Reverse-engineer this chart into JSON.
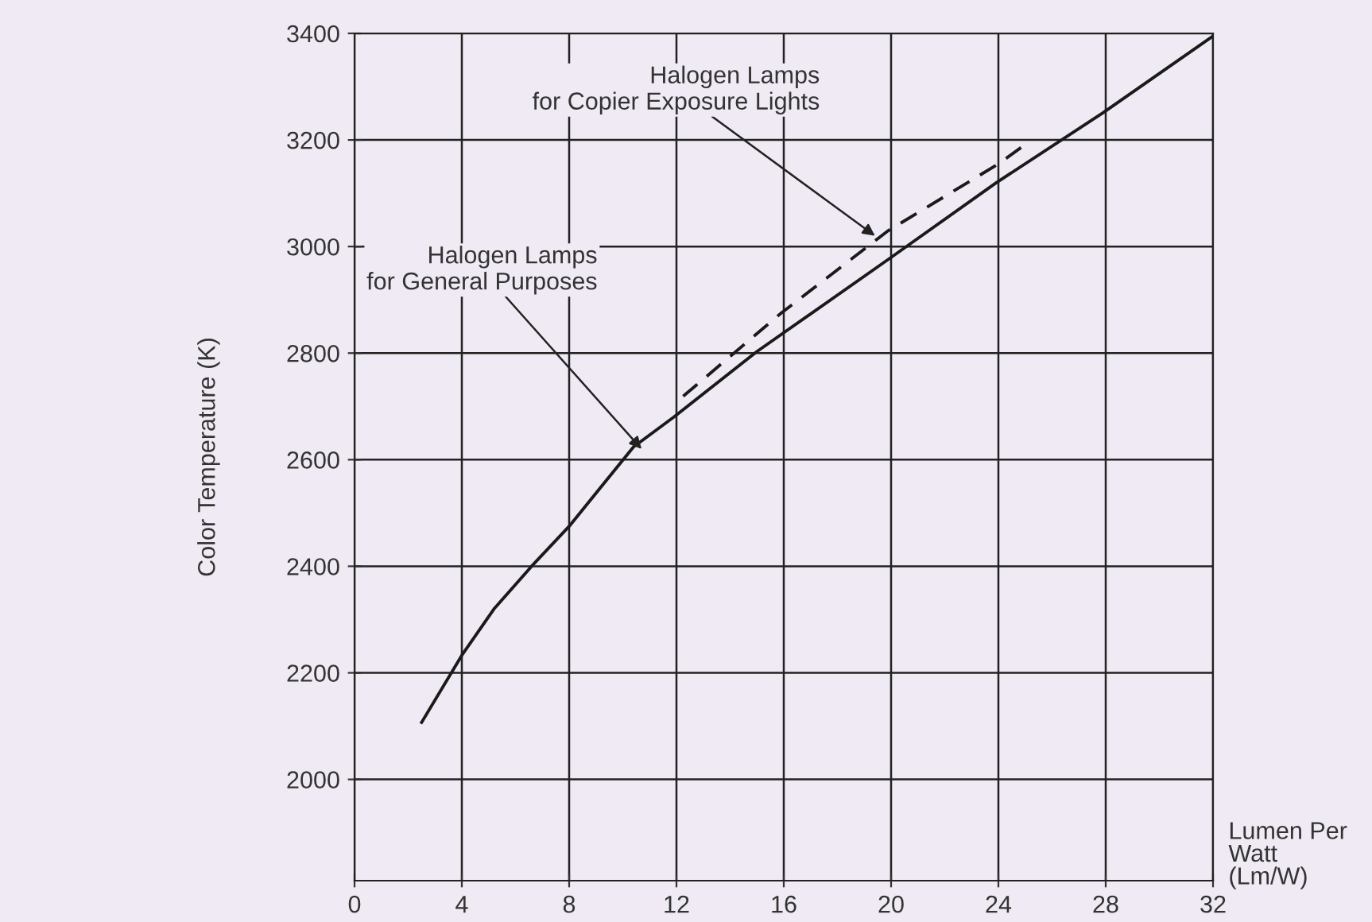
{
  "chart_data": {
    "type": "line",
    "xlabel": "Lumen Per\nWatt\n(Lm/W)",
    "ylabel": "Color Temperature (K)",
    "series": [
      {
        "x": [
          2.5,
          4.0,
          5.2,
          6.6,
          8.0,
          10.4,
          11.9,
          15.0,
          19.9,
          23.9,
          27.9,
          32.0
        ],
        "values": [
          2107,
          2233,
          2320,
          2400,
          2475,
          2624,
          2680,
          2803,
          2976,
          3119,
          3251,
          3395
        ],
        "color": "#1a1a1a",
        "line_style": "solid"
      },
      {
        "x": [
          12.25,
          15.9,
          19.9,
          24.0,
          25.1
        ],
        "values": [
          2719,
          2875,
          3030,
          3155,
          3195
        ],
        "color": "#1a1a1a",
        "line_style": "dashed"
      }
    ],
    "annotations": [
      {
        "text": "Halogen Lamps\nfor General Purposes",
        "x": 10.7,
        "y": 2620
      },
      {
        "text": "Halogen Lamps\nfor Copier Exposure Lights",
        "x": 19.4,
        "y": 3020
      }
    ],
    "xlim": [
      0,
      32
    ],
    "ylim": [
      1810,
      3400
    ],
    "xticks": [
      0,
      4,
      8,
      12,
      16,
      20,
      24,
      28,
      32
    ],
    "yticks": [
      2000,
      2200,
      2400,
      2600,
      2800,
      3000,
      3200,
      3400
    ],
    "grid": true,
    "marker": "none"
  }
}
